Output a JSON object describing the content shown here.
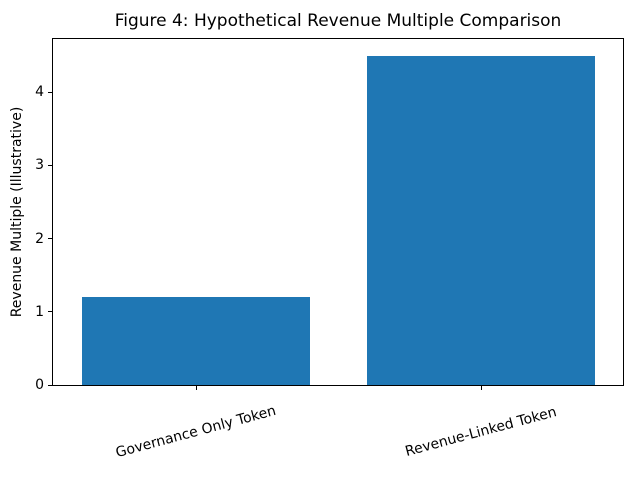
{
  "chart_data": {
    "type": "bar",
    "title": "Figure 4: Hypothetical Revenue Multiple Comparison",
    "categories": [
      "Governance Only Token",
      "Revenue-Linked Token"
    ],
    "values": [
      1.2,
      4.5
    ],
    "xlabel": "",
    "ylabel": "Revenue Multiple (Illustrative)",
    "ylim": [
      0,
      4.725
    ],
    "yticks": [
      0,
      1,
      2,
      3,
      4
    ],
    "ytick_labels": [
      "0",
      "1",
      "2",
      "3",
      "4"
    ],
    "x_tick_rotation_deg": 15,
    "bar_color": "#1f77b4",
    "axis_color": "#000000",
    "background_color": "#ffffff",
    "grid": false,
    "legend": null
  }
}
